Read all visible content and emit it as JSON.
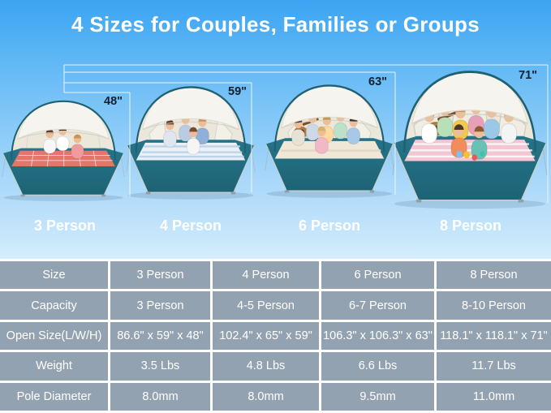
{
  "title": "4 Sizes for Couples, Families or Groups",
  "colors": {
    "sky_top": "#3ba4f2",
    "sky_bottom": "#c9e7fb",
    "title_text": "#ffffff",
    "table_cell_bg": "#93a2b1",
    "table_border": "#ffffff",
    "table_text": "#ffffff",
    "tent_floor_teal": "#1d6375",
    "tent_frame_teal": "#1f6073",
    "canopy_white": "#f5f4ef",
    "dimension_line": "#f2f9ff",
    "dimension_text": "#14202c"
  },
  "tents": [
    {
      "height_label": "48\"",
      "person_label": "3 Person"
    },
    {
      "height_label": "59\"",
      "person_label": "4 Person"
    },
    {
      "height_label": "63\"",
      "person_label": "6 Person"
    },
    {
      "height_label": "71\"",
      "person_label": "8 Person"
    }
  ],
  "table": {
    "rows": [
      {
        "label": "Size",
        "values": [
          "3 Person",
          "4 Person",
          "6 Person",
          "8 Person"
        ]
      },
      {
        "label": "Capacity",
        "values": [
          "3 Person",
          "4-5 Person",
          "6-7 Person",
          "8-10 Person"
        ]
      },
      {
        "label": "Open Size(L/W/H)",
        "values": [
          "86.6\" x 59\" x 48\"",
          "102.4\" x 65\" x 59\"",
          "106.3\" x 106.3\" x 63\"",
          "118.1\" x 118.1\" x 71\""
        ]
      },
      {
        "label": "Weight",
        "values": [
          "3.5 Lbs",
          "4.8 Lbs",
          "6.6 Lbs",
          "11.7 Lbs"
        ]
      },
      {
        "label": "Pole Diameter",
        "values": [
          "8.0mm",
          "8.0mm",
          "9.5mm",
          "11.0mm"
        ]
      }
    ]
  }
}
